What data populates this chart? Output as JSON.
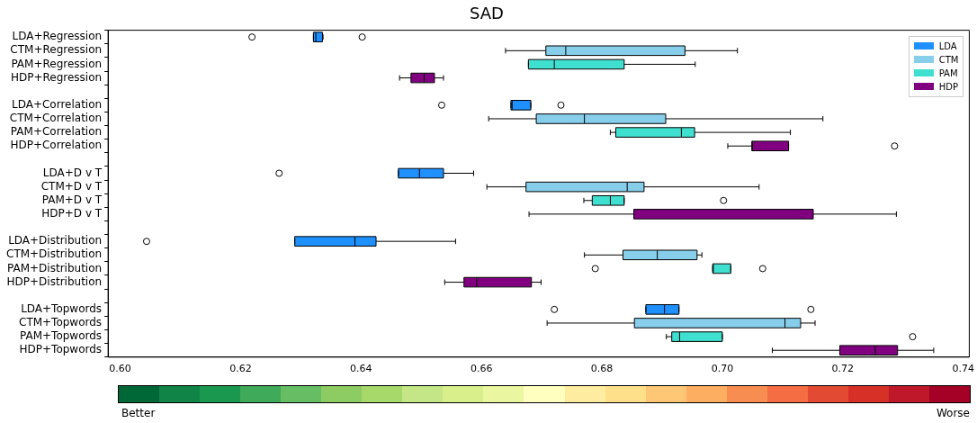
{
  "chart_data": {
    "type": "box",
    "title": "SAD",
    "orientation": "horizontal",
    "categories": [
      "LDA+Regression",
      "CTM+Regression",
      "PAM+Regression",
      "HDP+Regression",
      null,
      "LDA+Correlation",
      "CTM+Correlation",
      "PAM+Correlation",
      "HDP+Correlation",
      null,
      "LDA+D v T",
      "CTM+D v T",
      "PAM+D v T",
      "HDP+D v T",
      null,
      "LDA+Distribution",
      "CTM+Distribution",
      "PAM+Distribution",
      "HDP+Distribution",
      null,
      "LDA+Topwords",
      "CTM+Topwords",
      "PAM+Topwords",
      "HDP+Topwords"
    ],
    "xlim": [
      0.598,
      0.741
    ],
    "xticks": [
      {
        "value": 0.6,
        "label": "0.60"
      },
      {
        "value": 0.62,
        "label": "0.62"
      },
      {
        "value": 0.64,
        "label": "0.64"
      },
      {
        "value": 0.66,
        "label": "0.66"
      },
      {
        "value": 0.68,
        "label": "0.68"
      },
      {
        "value": 0.7,
        "label": "0.70"
      },
      {
        "value": 0.72,
        "label": "0.72"
      },
      {
        "value": 0.74,
        "label": "0.74"
      }
    ],
    "legend": "top right",
    "grid": false,
    "annotations": [
      "Better",
      "Worse"
    ],
    "series": [
      {
        "name": "LDA",
        "color": "#1e90ff",
        "boxes": [
          {
            "low": 0.6321,
            "q1": 0.6321,
            "median": 0.6325,
            "q3": 0.6336,
            "high": 0.6337,
            "outliers": [
              0.6219,
              0.6402
            ]
          },
          null,
          null,
          null,
          null,
          {
            "low": 0.6649,
            "q1": 0.6649,
            "median": 0.6651,
            "q3": 0.6682,
            "high": 0.6682,
            "outliers": [
              0.6534,
              0.6732
            ]
          },
          null,
          null,
          null,
          null,
          {
            "low": 0.6462,
            "q1": 0.6462,
            "median": 0.6497,
            "q3": 0.6537,
            "high": 0.6587,
            "outliers": [
              0.6264
            ]
          },
          null,
          null,
          null,
          null,
          {
            "low": 0.629,
            "q1": 0.629,
            "median": 0.639,
            "q3": 0.6425,
            "high": 0.6557,
            "outliers": [
              0.6044
            ]
          },
          null,
          null,
          null,
          null,
          {
            "low": 0.6873,
            "q1": 0.6873,
            "median": 0.6904,
            "q3": 0.6928,
            "high": 0.6928,
            "outliers": [
              0.6721,
              0.7147
            ]
          },
          null,
          null,
          null
        ]
      },
      {
        "name": "CTM",
        "color": "#87ceeb",
        "boxes": [
          null,
          {
            "low": 0.664,
            "q1": 0.6707,
            "median": 0.674,
            "q3": 0.6938,
            "high": 0.7025
          },
          null,
          null,
          null,
          null,
          {
            "low": 0.6612,
            "q1": 0.6691,
            "median": 0.6771,
            "q3": 0.6906,
            "high": 0.7167
          },
          null,
          null,
          null,
          null,
          {
            "low": 0.6609,
            "q1": 0.6674,
            "median": 0.6842,
            "q3": 0.687,
            "high": 0.7061
          },
          null,
          null,
          null,
          null,
          {
            "low": 0.6771,
            "q1": 0.6835,
            "median": 0.6892,
            "q3": 0.6958,
            "high": 0.6966
          },
          null,
          null,
          null,
          null,
          {
            "low": 0.6709,
            "q1": 0.6854,
            "median": 0.7104,
            "q3": 0.713,
            "high": 0.7154
          },
          null,
          null
        ]
      },
      {
        "name": "PAM",
        "color": "#40e0d0",
        "boxes": [
          null,
          null,
          {
            "low": 0.6678,
            "q1": 0.6678,
            "median": 0.6721,
            "q3": 0.6837,
            "high": 0.6955
          },
          null,
          null,
          null,
          null,
          {
            "low": 0.6814,
            "q1": 0.6823,
            "median": 0.6932,
            "q3": 0.6954,
            "high": 0.7113
          },
          null,
          null,
          null,
          null,
          {
            "low": 0.677,
            "q1": 0.6784,
            "median": 0.6814,
            "q3": 0.6837,
            "high": 0.6837,
            "outliers": [
              0.7002
            ]
          },
          null,
          null,
          null,
          null,
          {
            "low": 0.6984,
            "q1": 0.6984,
            "median": 0.6985,
            "q3": 0.7014,
            "high": 0.7014,
            "outliers": [
              0.6789,
              0.7067
            ]
          },
          null,
          null,
          null,
          null,
          {
            "low": 0.6907,
            "q1": 0.6916,
            "median": 0.6929,
            "q3": 0.7,
            "high": 0.7,
            "outliers": [
              0.7316
            ]
          },
          null
        ]
      },
      {
        "name": "HDP",
        "color": "#800080",
        "boxes": [
          null,
          null,
          null,
          {
            "low": 0.6464,
            "q1": 0.6483,
            "median": 0.6505,
            "q3": 0.6522,
            "high": 0.6537
          },
          null,
          null,
          null,
          null,
          {
            "low": 0.7009,
            "q1": 0.7049,
            "median": 0.705,
            "q3": 0.711,
            "high": 0.711,
            "outliers": [
              0.7286
            ]
          },
          null,
          null,
          null,
          null,
          {
            "low": 0.6679,
            "q1": 0.6853,
            "median": 0.6853,
            "q3": 0.7151,
            "high": 0.7289
          },
          null,
          null,
          null,
          null,
          {
            "low": 0.6539,
            "q1": 0.6571,
            "median": 0.6592,
            "q3": 0.6683,
            "high": 0.6699
          },
          null,
          null,
          null,
          null,
          {
            "low": 0.7083,
            "q1": 0.7195,
            "median": 0.7254,
            "q3": 0.7291,
            "high": 0.7351
          }
        ]
      }
    ]
  }
}
